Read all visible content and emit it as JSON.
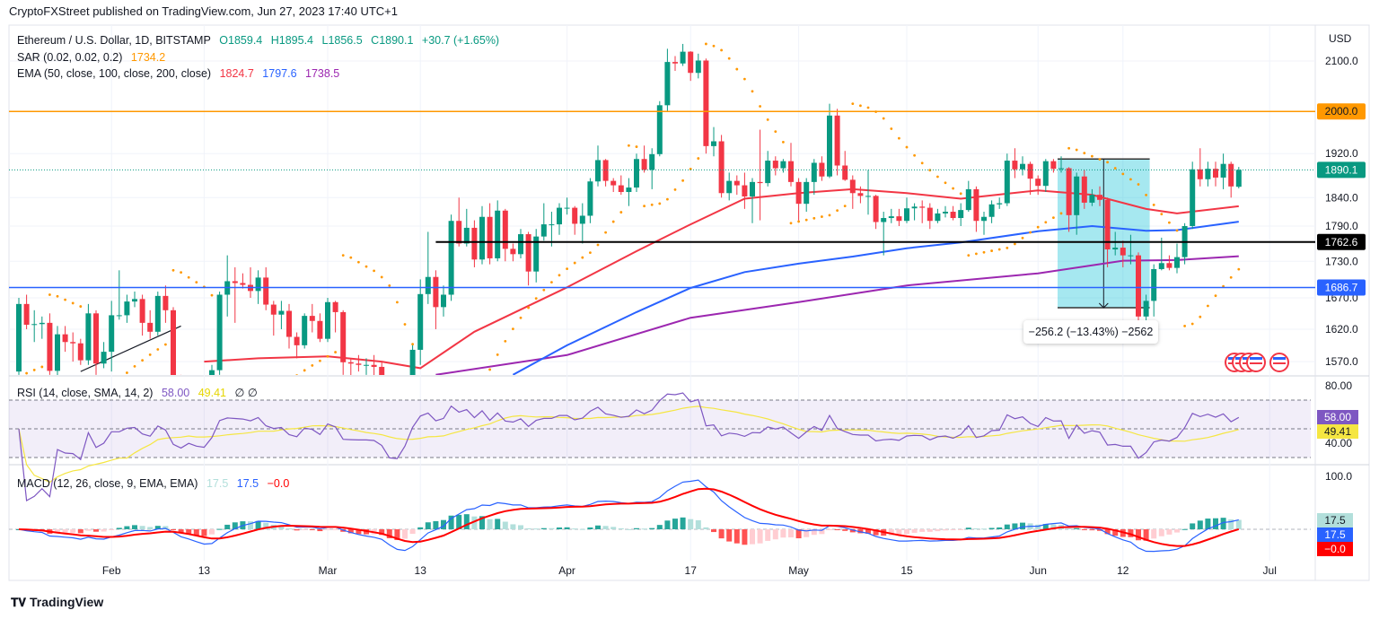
{
  "header": {
    "published": "CryptoFXStreet published on TradingView.com, Jun 27, 2023 17:40 UTC+1"
  },
  "legend": {
    "symbol": "Ethereum / U.S. Dollar, 1D, BITSTAMP",
    "open": "O1859.4",
    "high": "H1895.4",
    "low": "L1856.5",
    "close": "C1890.1",
    "change": "+30.7 (+1.65%)",
    "sar_label": "SAR (0.02, 0.02, 0.2)",
    "sar_value": "1734.2",
    "ema_label": "EMA (50, close, 100, close, 200, close)",
    "ema50": "1824.7",
    "ema100": "1797.6",
    "ema200": "1738.5",
    "rsi_label": "RSI (14, close, SMA, 14, 2)",
    "rsi_value": "58.00",
    "rsi_ma_value": "49.41",
    "rsi_extra": "∅ ∅",
    "macd_label": "MACD (12, 26, close, 9, EMA, EMA)",
    "macd_hist": "17.5",
    "macd_value": "17.5",
    "macd_signal": "−0.0"
  },
  "measure": {
    "label": "−256.2 (−13.43%) −2562",
    "from_date": "Jun 4",
    "to_date": "Jun 15",
    "from_price": 1910,
    "to_price": 1654
  },
  "logo": {
    "text": "TradingView"
  },
  "colors": {
    "up": "#089981",
    "down": "#f23645",
    "ema50": "#f23645",
    "ema100": "#2962ff",
    "ema200": "#9c27b0",
    "sar": "#ff9800",
    "rsi": "#7e57c2",
    "rsi_ma": "#f5e642",
    "macd": "#2962ff",
    "signal": "#ff0000",
    "level_2000": "#ff9800",
    "level_1686": "#2962ff",
    "level_1762": "#000000"
  },
  "chart_data": {
    "type": "candlestick",
    "price_scale": "log",
    "currency_label": "USD",
    "start_date": "2023-01-20",
    "interval": "1D",
    "ohlc": [
      [
        1555,
        1670,
        1550,
        1660
      ],
      [
        1660,
        1675,
        1620,
        1627
      ],
      [
        1627,
        1650,
        1600,
        1628
      ],
      [
        1628,
        1640,
        1605,
        1630
      ],
      [
        1630,
        1645,
        1550,
        1556
      ],
      [
        1556,
        1625,
        1530,
        1612
      ],
      [
        1612,
        1625,
        1585,
        1600
      ],
      [
        1600,
        1615,
        1570,
        1598
      ],
      [
        1598,
        1605,
        1565,
        1572
      ],
      [
        1572,
        1660,
        1565,
        1645
      ],
      [
        1645,
        1650,
        1550,
        1567
      ],
      [
        1567,
        1600,
        1560,
        1585
      ],
      [
        1585,
        1665,
        1555,
        1642
      ],
      [
        1642,
        1715,
        1635,
        1642
      ],
      [
        1642,
        1675,
        1630,
        1664
      ],
      [
        1664,
        1680,
        1655,
        1668
      ],
      [
        1668,
        1675,
        1610,
        1630
      ],
      [
        1630,
        1650,
        1605,
        1616
      ],
      [
        1616,
        1680,
        1610,
        1673
      ],
      [
        1673,
        1690,
        1630,
        1650
      ],
      [
        1650,
        1655,
        1540,
        1547
      ],
      [
        1547,
        1550,
        1505,
        1514
      ],
      [
        1514,
        1545,
        1505,
        1539
      ],
      [
        1539,
        1545,
        1510,
        1516
      ],
      [
        1516,
        1520,
        1460,
        1506
      ],
      [
        1506,
        1565,
        1495,
        1557
      ],
      [
        1557,
        1680,
        1550,
        1675
      ],
      [
        1675,
        1740,
        1640,
        1697
      ],
      [
        1697,
        1720,
        1630,
        1694
      ],
      [
        1694,
        1710,
        1685,
        1691
      ],
      [
        1691,
        1720,
        1670,
        1681
      ],
      [
        1681,
        1715,
        1660,
        1703
      ],
      [
        1703,
        1720,
        1650,
        1659
      ],
      [
        1659,
        1665,
        1610,
        1643
      ],
      [
        1643,
        1665,
        1620,
        1649
      ],
      [
        1649,
        1660,
        1590,
        1608
      ],
      [
        1608,
        1615,
        1575,
        1595
      ],
      [
        1595,
        1645,
        1590,
        1641
      ],
      [
        1641,
        1660,
        1615,
        1633
      ],
      [
        1633,
        1645,
        1600,
        1605
      ],
      [
        1605,
        1670,
        1600,
        1663
      ],
      [
        1663,
        1665,
        1615,
        1647
      ],
      [
        1647,
        1650,
        1550,
        1569
      ],
      [
        1569,
        1575,
        1545,
        1567
      ],
      [
        1567,
        1580,
        1555,
        1565
      ],
      [
        1565,
        1575,
        1550,
        1565
      ],
      [
        1565,
        1580,
        1540,
        1562
      ],
      [
        1562,
        1570,
        1530,
        1533
      ],
      [
        1533,
        1540,
        1420,
        1437
      ],
      [
        1437,
        1440,
        1370,
        1430
      ],
      [
        1430,
        1490,
        1410,
        1482
      ],
      [
        1482,
        1595,
        1470,
        1588
      ],
      [
        1588,
        1700,
        1565,
        1676
      ],
      [
        1676,
        1780,
        1660,
        1704
      ],
      [
        1704,
        1715,
        1620,
        1655
      ],
      [
        1655,
        1690,
        1640,
        1675
      ],
      [
        1675,
        1810,
        1665,
        1799
      ],
      [
        1799,
        1840,
        1755,
        1760
      ],
      [
        1760,
        1820,
        1755,
        1787
      ],
      [
        1787,
        1800,
        1720,
        1733
      ],
      [
        1733,
        1825,
        1725,
        1806
      ],
      [
        1806,
        1830,
        1725,
        1735
      ],
      [
        1735,
        1835,
        1730,
        1817
      ],
      [
        1817,
        1820,
        1730,
        1751
      ],
      [
        1751,
        1760,
        1730,
        1742
      ],
      [
        1742,
        1785,
        1735,
        1776
      ],
      [
        1776,
        1780,
        1690,
        1713
      ],
      [
        1713,
        1785,
        1695,
        1772
      ],
      [
        1772,
        1830,
        1765,
        1793
      ],
      [
        1793,
        1815,
        1755,
        1793
      ],
      [
        1793,
        1830,
        1775,
        1822
      ],
      [
        1822,
        1840,
        1810,
        1822
      ],
      [
        1822,
        1825,
        1775,
        1794
      ],
      [
        1794,
        1830,
        1760,
        1808
      ],
      [
        1808,
        1875,
        1795,
        1869
      ],
      [
        1869,
        1935,
        1860,
        1908
      ],
      [
        1908,
        1910,
        1860,
        1870
      ],
      [
        1870,
        1875,
        1850,
        1862
      ],
      [
        1862,
        1880,
        1845,
        1850
      ],
      [
        1850,
        1875,
        1825,
        1858
      ],
      [
        1858,
        1920,
        1850,
        1910
      ],
      [
        1910,
        1935,
        1885,
        1890
      ],
      [
        1890,
        1930,
        1855,
        1919
      ],
      [
        1919,
        2020,
        1915,
        2012
      ],
      [
        2012,
        2125,
        2000,
        2098
      ],
      [
        2098,
        2110,
        2080,
        2095
      ],
      [
        2095,
        2135,
        2090,
        2119
      ],
      [
        2119,
        2120,
        2060,
        2076
      ],
      [
        2076,
        2115,
        2065,
        2101
      ],
      [
        2101,
        2105,
        1920,
        1934
      ],
      [
        1934,
        1970,
        1915,
        1943
      ],
      [
        1943,
        1955,
        1840,
        1848
      ],
      [
        1848,
        1885,
        1835,
        1870
      ],
      [
        1870,
        1880,
        1845,
        1862
      ],
      [
        1862,
        1885,
        1820,
        1842
      ],
      [
        1842,
        1875,
        1795,
        1868
      ],
      [
        1868,
        1965,
        1800,
        1866
      ],
      [
        1866,
        1925,
        1860,
        1907
      ],
      [
        1907,
        1915,
        1880,
        1893
      ],
      [
        1893,
        1910,
        1885,
        1906
      ],
      [
        1906,
        1940,
        1860,
        1868
      ],
      [
        1868,
        1875,
        1800,
        1829
      ],
      [
        1829,
        1875,
        1815,
        1868
      ],
      [
        1868,
        1910,
        1845,
        1903
      ],
      [
        1903,
        1915,
        1870,
        1878
      ],
      [
        1878,
        2015,
        1875,
        1992
      ],
      [
        1992,
        2005,
        1880,
        1898
      ],
      [
        1898,
        1925,
        1870,
        1872
      ],
      [
        1872,
        1880,
        1820,
        1848
      ],
      [
        1848,
        1860,
        1830,
        1843
      ],
      [
        1843,
        1890,
        1810,
        1843
      ],
      [
        1843,
        1845,
        1785,
        1797
      ],
      [
        1797,
        1815,
        1740,
        1804
      ],
      [
        1804,
        1820,
        1795,
        1807
      ],
      [
        1807,
        1820,
        1790,
        1799
      ],
      [
        1799,
        1840,
        1795,
        1821
      ],
      [
        1821,
        1830,
        1800,
        1824
      ],
      [
        1824,
        1835,
        1795,
        1822
      ],
      [
        1822,
        1830,
        1785,
        1799
      ],
      [
        1799,
        1820,
        1795,
        1812
      ],
      [
        1812,
        1825,
        1805,
        1815
      ],
      [
        1815,
        1825,
        1800,
        1804
      ],
      [
        1804,
        1830,
        1790,
        1818
      ],
      [
        1818,
        1870,
        1815,
        1855
      ],
      [
        1855,
        1860,
        1780,
        1799
      ],
      [
        1799,
        1815,
        1775,
        1806
      ],
      [
        1806,
        1835,
        1795,
        1828
      ],
      [
        1828,
        1840,
        1820,
        1830
      ],
      [
        1830,
        1920,
        1825,
        1907
      ],
      [
        1907,
        1930,
        1875,
        1891
      ],
      [
        1891,
        1915,
        1880,
        1901
      ],
      [
        1901,
        1905,
        1845,
        1874
      ],
      [
        1874,
        1880,
        1845,
        1861
      ],
      [
        1861,
        1910,
        1850,
        1906
      ],
      [
        1906,
        1910,
        1885,
        1892
      ],
      [
        1892,
        1915,
        1885,
        1893
      ],
      [
        1893,
        1895,
        1780,
        1809
      ],
      [
        1809,
        1885,
        1775,
        1878
      ],
      [
        1878,
        1890,
        1820,
        1831
      ],
      [
        1831,
        1855,
        1825,
        1845
      ],
      [
        1845,
        1860,
        1825,
        1836
      ],
      [
        1836,
        1840,
        1720,
        1750
      ],
      [
        1750,
        1780,
        1740,
        1753
      ],
      [
        1753,
        1765,
        1720,
        1740
      ],
      [
        1740,
        1775,
        1725,
        1740
      ],
      [
        1740,
        1745,
        1625,
        1640
      ],
      [
        1640,
        1675,
        1630,
        1665
      ],
      [
        1665,
        1725,
        1640,
        1717
      ],
      [
        1717,
        1770,
        1715,
        1727
      ],
      [
        1727,
        1740,
        1715,
        1719
      ],
      [
        1719,
        1760,
        1710,
        1737
      ],
      [
        1737,
        1795,
        1725,
        1790
      ],
      [
        1790,
        1905,
        1785,
        1891
      ],
      [
        1891,
        1930,
        1860,
        1873
      ],
      [
        1873,
        1905,
        1860,
        1892
      ],
      [
        1892,
        1905,
        1860,
        1876
      ],
      [
        1876,
        1920,
        1855,
        1901
      ],
      [
        1901,
        1905,
        1840,
        1860
      ],
      [
        1859.4,
        1895.4,
        1856.5,
        1890.1
      ]
    ],
    "ema50_points": [
      [
        "2023-02-13",
        1570
      ],
      [
        "2023-02-20",
        1575
      ],
      [
        "2023-03-01",
        1578
      ],
      [
        "2023-03-08",
        1570
      ],
      [
        "2023-03-13",
        1560
      ],
      [
        "2023-03-20",
        1616
      ],
      [
        "2023-04-01",
        1687
      ],
      [
        "2023-04-10",
        1747
      ],
      [
        "2023-04-17",
        1793
      ],
      [
        "2023-04-24",
        1838
      ],
      [
        "2023-05-01",
        1848
      ],
      [
        "2023-05-08",
        1855
      ],
      [
        "2023-05-15",
        1848
      ],
      [
        "2023-05-22",
        1838
      ],
      [
        "2023-06-01",
        1853
      ],
      [
        "2023-06-08",
        1845
      ],
      [
        "2023-06-15",
        1820
      ],
      [
        "2023-06-19",
        1812
      ],
      [
        "2023-06-27",
        1824.7
      ]
    ],
    "ema100_points": [
      [
        "2023-03-25",
        1550
      ],
      [
        "2023-04-01",
        1595
      ],
      [
        "2023-04-10",
        1647
      ],
      [
        "2023-04-17",
        1686
      ],
      [
        "2023-04-24",
        1712
      ],
      [
        "2023-05-01",
        1726
      ],
      [
        "2023-05-08",
        1738
      ],
      [
        "2023-05-15",
        1752
      ],
      [
        "2023-05-22",
        1762
      ],
      [
        "2023-06-01",
        1781
      ],
      [
        "2023-06-08",
        1790
      ],
      [
        "2023-06-15",
        1782
      ],
      [
        "2023-06-19",
        1783
      ],
      [
        "2023-06-27",
        1797.6
      ]
    ],
    "ema200_points": [
      [
        "2023-03-15",
        1550
      ],
      [
        "2023-04-01",
        1580
      ],
      [
        "2023-04-17",
        1638
      ],
      [
        "2023-05-01",
        1663
      ],
      [
        "2023-05-15",
        1690
      ],
      [
        "2023-06-01",
        1710
      ],
      [
        "2023-06-12",
        1731
      ],
      [
        "2023-06-19",
        1732
      ],
      [
        "2023-06-27",
        1738.5
      ]
    ],
    "horizontal_levels": [
      {
        "price": 2000.0,
        "label": "2000.0"
      },
      {
        "price": 1762.6,
        "label": "1762.6",
        "from_date": "2023-03-15"
      },
      {
        "price": 1686.7,
        "label": "1686.7"
      }
    ],
    "trend_line": [
      [
        "2023-01-28",
        1555
      ],
      [
        "2023-02-10",
        1625
      ]
    ],
    "last_price_label": "1890.1",
    "price_ticks": [
      "2100.0",
      "1920.0",
      "1840.0",
      "1790.0",
      "1730.0",
      "1670.0",
      "1620.0",
      "1570.0"
    ],
    "rsi_ticks": [
      "80.00",
      "40.00"
    ],
    "rsi_bands": [
      70,
      50,
      30
    ],
    "macd_ticks": [
      "100.0"
    ],
    "time_ticks": [
      [
        "2023-02-01",
        "Feb"
      ],
      [
        "2023-02-13",
        "13"
      ],
      [
        "2023-03-01",
        "Mar"
      ],
      [
        "2023-03-13",
        "13"
      ],
      [
        "2023-04-01",
        "Apr"
      ],
      [
        "2023-04-17",
        "17"
      ],
      [
        "2023-05-01",
        "May"
      ],
      [
        "2023-05-15",
        "15"
      ],
      [
        "2023-06-01",
        "Jun"
      ],
      [
        "2023-06-12",
        "12"
      ],
      [
        "2023-07-01",
        "Jul"
      ]
    ],
    "sar_params": [
      0.02,
      0.02,
      0.2
    ],
    "rsi_params": [
      14,
      14
    ],
    "macd_params": [
      12,
      26,
      9
    ]
  }
}
